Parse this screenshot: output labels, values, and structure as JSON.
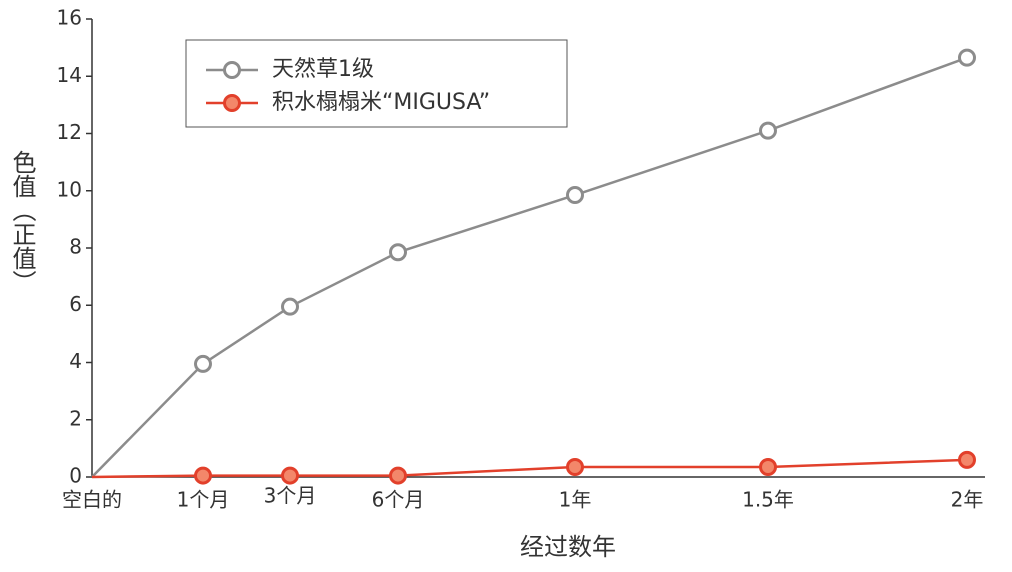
{
  "chart_data": {
    "type": "line",
    "categories": [
      "空白的",
      "1个月",
      "3个月",
      "6个月",
      "1年",
      "1.5年",
      "2年"
    ],
    "x_label": "经过数年",
    "y_label": "色值（正值）",
    "series": [
      {
        "name": "天然草1级",
        "color": "#8c8c8c",
        "marker_fill": "#ffffff",
        "values": [
          0,
          3.95,
          5.95,
          7.85,
          9.85,
          12.1,
          14.65
        ]
      },
      {
        "name": "积水榻榻米“MIGUSA”",
        "color": "#e2402b",
        "marker_fill": "#f3876a",
        "values": [
          0,
          0.05,
          0.05,
          0.05,
          0.35,
          0.35,
          0.6
        ]
      }
    ],
    "ylim": [
      0,
      16
    ],
    "yticks": [
      0,
      2,
      4,
      6,
      8,
      10,
      12,
      14,
      16
    ],
    "grid": false
  }
}
